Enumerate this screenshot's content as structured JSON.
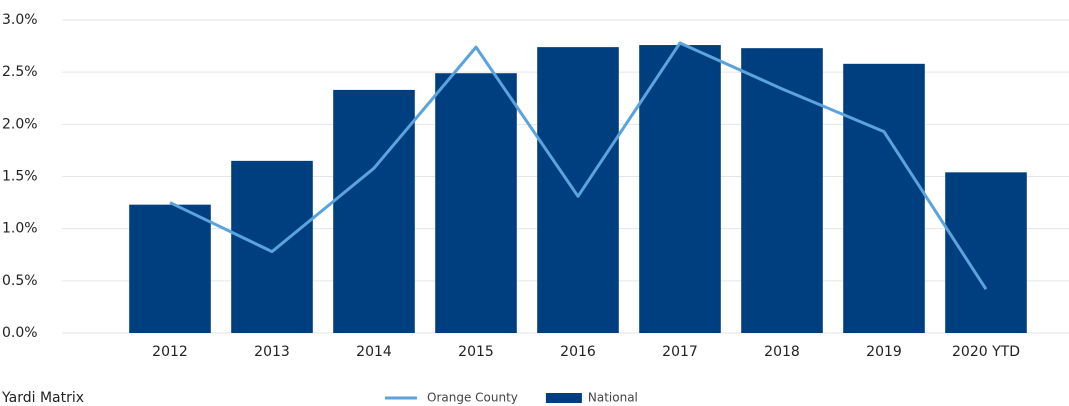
{
  "chart_data": {
    "type": "bar-line",
    "categories": [
      "2012",
      "2013",
      "2014",
      "2015",
      "2016",
      "2017",
      "2018",
      "2019",
      "2020 YTD"
    ],
    "series": [
      {
        "name": "National",
        "type": "bar",
        "color": "#003f7f",
        "values": [
          1.23,
          1.65,
          2.33,
          2.49,
          2.74,
          2.76,
          2.73,
          2.58,
          1.54
        ]
      },
      {
        "name": "Orange County",
        "type": "line",
        "color": "#5ba3dc",
        "values": [
          1.25,
          0.78,
          1.58,
          2.74,
          1.31,
          2.78,
          2.34,
          1.93,
          0.42
        ]
      }
    ],
    "ylim": [
      0,
      3
    ],
    "yticks": [
      {
        "value": 0,
        "label": "0.0%"
      },
      {
        "value": 0.5,
        "label": "0.5%"
      },
      {
        "value": 1,
        "label": "1.0%"
      },
      {
        "value": 1.5,
        "label": "1.5%"
      },
      {
        "value": 2,
        "label": "2.0%"
      },
      {
        "value": 2.5,
        "label": "2.5%"
      },
      {
        "value": 3,
        "label": "3.0%"
      }
    ],
    "grid": true,
    "source": "Yardi Matrix"
  }
}
